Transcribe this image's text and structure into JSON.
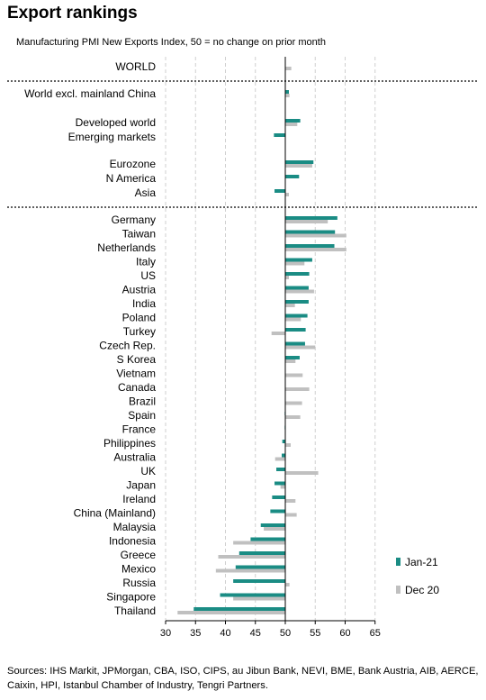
{
  "title": "Export rankings",
  "subtitle": "Manufacturing PMI New Exports Index, 50 = no change on prior month",
  "sources": "Sources: IHS Markit, JPMorgan, CBA, ISO, CIPS, au Jibun Bank, NEVI, BME, Bank Austria, AIB, AERCE, Caixin, HPI, Istanbul Chamber of Industry, Tengri Partners.",
  "colors": {
    "jan21": "#1a8c84",
    "dec20": "#c0c0c0",
    "grid": "#cfcfcf",
    "axis": "#000000"
  },
  "chart_data": {
    "type": "bar",
    "orientation": "horizontal",
    "xlim": [
      30,
      65
    ],
    "x_ticks": [
      30,
      35,
      40,
      45,
      50,
      55,
      60,
      65
    ],
    "baseline": 50,
    "grid": true,
    "legend_position": "bottom-right",
    "series": [
      {
        "name": "Jan-21",
        "color": "#1a8c84"
      },
      {
        "name": "Dec 20",
        "color": "#c0c0c0"
      }
    ],
    "categories": [
      "WORLD",
      "World excl. mainland China",
      "Developed world",
      "Emerging markets",
      "Eurozone",
      "N America",
      "Asia",
      "Germany",
      "Taiwan",
      "Netherlands",
      "Italy",
      "US",
      "Austria",
      "India",
      "Poland",
      "Turkey",
      "Czech Rep.",
      "S Korea",
      "Vietnam",
      "Canada",
      "Brazil",
      "Spain",
      "France",
      "Philippines",
      "Australia",
      "UK",
      "Japan",
      "Ireland",
      "China (Mainland)",
      "Malaysia",
      "Indonesia",
      "Greece",
      "Mexico",
      "Russia",
      "Singapore",
      "Thailand"
    ],
    "jan21": [
      50.0,
      50.6,
      52.5,
      48.1,
      54.7,
      52.3,
      48.2,
      58.7,
      58.3,
      58.2,
      54.5,
      54.0,
      53.9,
      53.9,
      53.7,
      53.4,
      53.3,
      52.4,
      50.0,
      50.0,
      50.0,
      49.9,
      49.9,
      49.5,
      49.4,
      48.5,
      48.2,
      47.8,
      47.5,
      45.9,
      44.2,
      42.3,
      41.7,
      41.3,
      39.1,
      34.7
    ],
    "dec20": [
      51.0,
      50.7,
      52.0,
      50.0,
      54.5,
      50.0,
      50.6,
      57.1,
      60.2,
      60.2,
      53.2,
      50.6,
      54.8,
      51.6,
      52.6,
      47.7,
      55.0,
      51.7,
      52.9,
      54.0,
      52.8,
      52.5,
      50.0,
      50.9,
      48.3,
      55.5,
      49.2,
      51.7,
      51.9,
      46.4,
      41.3,
      38.8,
      38.4,
      50.7,
      41.3,
      32.0
    ]
  }
}
